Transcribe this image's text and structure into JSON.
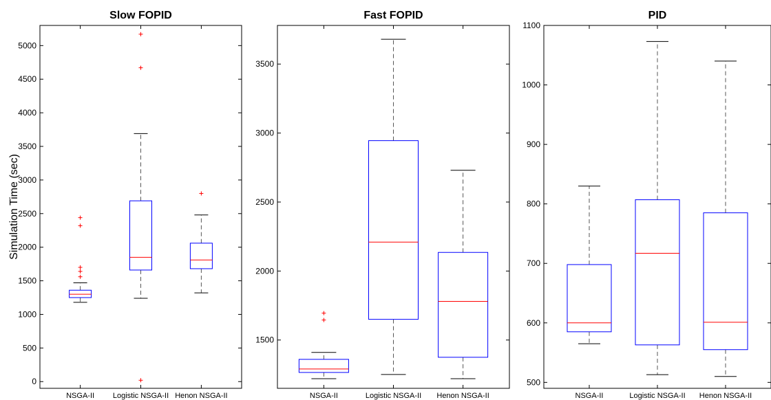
{
  "chart_data": [
    {
      "type": "box",
      "title": "Slow FOPID",
      "ylabel": "Simulation Time (sec)",
      "categories": [
        "NSGA-II",
        "Logistic NSGA-II",
        "Henon NSGA-II"
      ],
      "ylim": [
        -100,
        5300
      ],
      "yticks": [
        0,
        500,
        1000,
        1500,
        2000,
        2500,
        3000,
        3500,
        4000,
        4500,
        5000
      ],
      "boxes": [
        {
          "whisker_low": 1180,
          "q1": 1250,
          "median": 1300,
          "q3": 1360,
          "whisker_high": 1470,
          "outliers": [
            1560,
            1640,
            1700,
            2320,
            2440
          ]
        },
        {
          "whisker_low": 1240,
          "q1": 1660,
          "median": 1850,
          "q3": 2690,
          "whisker_high": 3690,
          "outliers": [
            20,
            4670,
            5170
          ]
        },
        {
          "whisker_low": 1320,
          "q1": 1680,
          "median": 1810,
          "q3": 2060,
          "whisker_high": 2480,
          "outliers": [
            2800
          ]
        }
      ]
    },
    {
      "type": "box",
      "title": "Fast FOPID",
      "ylabel": "",
      "categories": [
        "NSGA-II",
        "Logistic NSGA-II",
        "Henon NSGA-II"
      ],
      "ylim": [
        1150,
        3780
      ],
      "yticks": [
        1500,
        2000,
        2500,
        3000,
        3500
      ],
      "boxes": [
        {
          "whisker_low": 1220,
          "q1": 1265,
          "median": 1290,
          "q3": 1360,
          "whisker_high": 1410,
          "outliers": [
            1645,
            1695
          ]
        },
        {
          "whisker_low": 1250,
          "q1": 1650,
          "median": 2210,
          "q3": 2945,
          "whisker_high": 3680,
          "outliers": []
        },
        {
          "whisker_low": 1220,
          "q1": 1375,
          "median": 1780,
          "q3": 2135,
          "whisker_high": 2730,
          "outliers": []
        }
      ]
    },
    {
      "type": "box",
      "title": "PID",
      "ylabel": "",
      "categories": [
        "NSGA-II",
        "Logistic NSGA-II",
        "Henon NSGA-II"
      ],
      "ylim": [
        490,
        1100
      ],
      "yticks": [
        500,
        600,
        700,
        800,
        900,
        1000,
        1100
      ],
      "boxes": [
        {
          "whisker_low": 565,
          "q1": 585,
          "median": 600,
          "q3": 698,
          "whisker_high": 830,
          "outliers": []
        },
        {
          "whisker_low": 513,
          "q1": 563,
          "median": 717,
          "q3": 807,
          "whisker_high": 1073,
          "outliers": []
        },
        {
          "whisker_low": 510,
          "q1": 555,
          "median": 601,
          "q3": 785,
          "whisker_high": 1040,
          "outliers": []
        }
      ]
    }
  ],
  "colors": {
    "box": "#0000ff",
    "median": "#ff0000",
    "outlier": "#ff0000",
    "whisker": "#000000",
    "whisker_dash": "#555555"
  }
}
